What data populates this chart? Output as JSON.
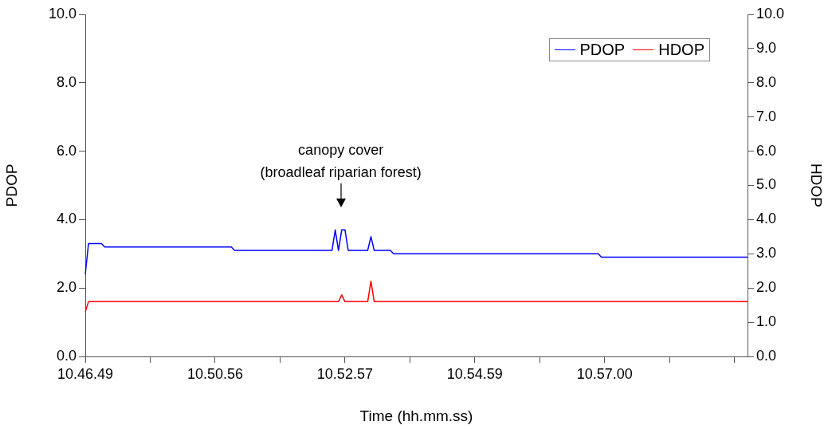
{
  "chart_data": {
    "type": "line",
    "xlabel": "Time (hh.mm.ss)",
    "ylabel": "PDOP",
    "y2label": "HDOP",
    "categories": [
      "10.46.49",
      null,
      null,
      null,
      null,
      null,
      null,
      null,
      null,
      null,
      null,
      null,
      null,
      null,
      null,
      null,
      null,
      null,
      null,
      null,
      null,
      null,
      null,
      null,
      null,
      null,
      null,
      null,
      null,
      null,
      null,
      null,
      null,
      null,
      null,
      null,
      null,
      null,
      null,
      null,
      "10.50.56",
      null,
      null,
      null,
      null,
      null,
      null,
      null,
      null,
      null,
      null,
      null,
      null,
      null,
      null,
      null,
      null,
      null,
      null,
      null,
      null,
      null,
      null,
      null,
      null,
      null,
      null,
      null,
      null,
      null,
      null,
      null,
      null,
      null,
      null,
      null,
      null,
      null,
      null,
      null,
      "10.52.57",
      null,
      null,
      null,
      null,
      null,
      null,
      null,
      null,
      null,
      null,
      null,
      null,
      null,
      null,
      null,
      null,
      null,
      null,
      null,
      null,
      null,
      null,
      null,
      null,
      null,
      null,
      null,
      null,
      null,
      null,
      null,
      null,
      null,
      null,
      null,
      null,
      null,
      null,
      null,
      "10.54.59",
      null,
      null,
      null,
      null,
      null,
      null,
      null,
      null,
      null,
      null,
      null,
      null,
      null,
      null,
      null,
      null,
      null,
      null,
      null,
      null,
      null,
      null,
      null,
      null,
      null,
      null,
      null,
      null,
      null,
      null,
      null,
      null,
      null,
      null,
      null,
      null,
      null,
      null,
      null,
      "10.57.00",
      null,
      null,
      null,
      null,
      null,
      null,
      null,
      null,
      null,
      null,
      null,
      null,
      null,
      null,
      null,
      null,
      null,
      null,
      null,
      null,
      null,
      null,
      null,
      null,
      null,
      null,
      null,
      null,
      null,
      null,
      null,
      null,
      null,
      null,
      null,
      null,
      null,
      null,
      null,
      null,
      null,
      null,
      null,
      null
    ],
    "series": [
      {
        "name": "PDOP",
        "color": "#0000ff",
        "values": [
          2.4,
          3.3,
          3.3,
          3.3,
          3.3,
          3.3,
          3.2,
          3.2,
          3.2,
          3.2,
          3.2,
          3.2,
          3.2,
          3.2,
          3.2,
          3.2,
          3.2,
          3.2,
          3.2,
          3.2,
          3.2,
          3.2,
          3.2,
          3.2,
          3.2,
          3.2,
          3.2,
          3.2,
          3.2,
          3.2,
          3.2,
          3.2,
          3.2,
          3.2,
          3.2,
          3.2,
          3.2,
          3.2,
          3.2,
          3.2,
          3.2,
          3.2,
          3.2,
          3.2,
          3.2,
          3.2,
          3.1,
          3.1,
          3.1,
          3.1,
          3.1,
          3.1,
          3.1,
          3.1,
          3.1,
          3.1,
          3.1,
          3.1,
          3.1,
          3.1,
          3.1,
          3.1,
          3.1,
          3.1,
          3.1,
          3.1,
          3.1,
          3.1,
          3.1,
          3.1,
          3.1,
          3.1,
          3.1,
          3.1,
          3.1,
          3.1,
          3.1,
          3.7,
          3.1,
          3.7,
          3.7,
          3.1,
          3.1,
          3.1,
          3.1,
          3.1,
          3.1,
          3.1,
          3.5,
          3.1,
          3.1,
          3.1,
          3.1,
          3.1,
          3.1,
          3.0,
          3.0,
          3.0,
          3.0,
          3.0,
          3.0,
          3.0,
          3.0,
          3.0,
          3.0,
          3.0,
          3.0,
          3.0,
          3.0,
          3.0,
          3.0,
          3.0,
          3.0,
          3.0,
          3.0,
          3.0,
          3.0,
          3.0,
          3.0,
          3.0,
          3.0,
          3.0,
          3.0,
          3.0,
          3.0,
          3.0,
          3.0,
          3.0,
          3.0,
          3.0,
          3.0,
          3.0,
          3.0,
          3.0,
          3.0,
          3.0,
          3.0,
          3.0,
          3.0,
          3.0,
          3.0,
          3.0,
          3.0,
          3.0,
          3.0,
          3.0,
          3.0,
          3.0,
          3.0,
          3.0,
          3.0,
          3.0,
          3.0,
          3.0,
          3.0,
          3.0,
          3.0,
          3.0,
          3.0,
          2.9,
          2.9,
          2.9,
          2.9,
          2.9,
          2.9,
          2.9,
          2.9,
          2.9,
          2.9,
          2.9,
          2.9,
          2.9,
          2.9,
          2.9,
          2.9,
          2.9,
          2.9,
          2.9,
          2.9,
          2.9,
          2.9,
          2.9,
          2.9,
          2.9,
          2.9,
          2.9,
          2.9,
          2.9,
          2.9,
          2.9,
          2.9,
          2.9,
          2.9,
          2.9,
          2.9,
          2.9,
          2.9,
          2.9,
          2.9,
          2.9,
          2.9,
          2.9,
          2.9,
          2.9,
          2.9
        ]
      },
      {
        "name": "HDOP",
        "color": "#ff0000",
        "axis": "y2",
        "values": [
          1.3,
          1.6,
          1.6,
          1.6,
          1.6,
          1.6,
          1.6,
          1.6,
          1.6,
          1.6,
          1.6,
          1.6,
          1.6,
          1.6,
          1.6,
          1.6,
          1.6,
          1.6,
          1.6,
          1.6,
          1.6,
          1.6,
          1.6,
          1.6,
          1.6,
          1.6,
          1.6,
          1.6,
          1.6,
          1.6,
          1.6,
          1.6,
          1.6,
          1.6,
          1.6,
          1.6,
          1.6,
          1.6,
          1.6,
          1.6,
          1.6,
          1.6,
          1.6,
          1.6,
          1.6,
          1.6,
          1.6,
          1.6,
          1.6,
          1.6,
          1.6,
          1.6,
          1.6,
          1.6,
          1.6,
          1.6,
          1.6,
          1.6,
          1.6,
          1.6,
          1.6,
          1.6,
          1.6,
          1.6,
          1.6,
          1.6,
          1.6,
          1.6,
          1.6,
          1.6,
          1.6,
          1.6,
          1.6,
          1.6,
          1.6,
          1.6,
          1.6,
          1.6,
          1.6,
          1.8,
          1.6,
          1.6,
          1.6,
          1.6,
          1.6,
          1.6,
          1.6,
          1.6,
          2.2,
          1.6,
          1.6,
          1.6,
          1.6,
          1.6,
          1.6,
          1.6,
          1.6,
          1.6,
          1.6,
          1.6,
          1.6,
          1.6,
          1.6,
          1.6,
          1.6,
          1.6,
          1.6,
          1.6,
          1.6,
          1.6,
          1.6,
          1.6,
          1.6,
          1.6,
          1.6,
          1.6,
          1.6,
          1.6,
          1.6,
          1.6,
          1.6,
          1.6,
          1.6,
          1.6,
          1.6,
          1.6,
          1.6,
          1.6,
          1.6,
          1.6,
          1.6,
          1.6,
          1.6,
          1.6,
          1.6,
          1.6,
          1.6,
          1.6,
          1.6,
          1.6,
          1.6,
          1.6,
          1.6,
          1.6,
          1.6,
          1.6,
          1.6,
          1.6,
          1.6,
          1.6,
          1.6,
          1.6,
          1.6,
          1.6,
          1.6,
          1.6,
          1.6,
          1.6,
          1.6,
          1.6,
          1.6,
          1.6,
          1.6,
          1.6,
          1.6,
          1.6,
          1.6,
          1.6,
          1.6,
          1.6,
          1.6,
          1.6,
          1.6,
          1.6,
          1.6,
          1.6,
          1.6,
          1.6,
          1.6,
          1.6,
          1.6,
          1.6,
          1.6,
          1.6,
          1.6,
          1.6,
          1.6,
          1.6,
          1.6,
          1.6,
          1.6,
          1.6,
          1.6,
          1.6,
          1.6,
          1.6,
          1.6,
          1.6,
          1.6,
          1.6,
          1.6,
          1.6,
          1.6,
          1.6,
          1.6
        ]
      }
    ],
    "ylim": [
      0,
      10
    ],
    "yticks": [
      {
        "value": 0,
        "label": "0.0"
      },
      {
        "value": 2,
        "label": "2.0"
      },
      {
        "value": 4,
        "label": "4.0"
      },
      {
        "value": 6,
        "label": "6.0"
      },
      {
        "value": 8,
        "label": "8.0"
      },
      {
        "value": 10,
        "label": "10.0"
      }
    ],
    "y2lim": [
      0,
      10
    ],
    "y2ticks": [
      {
        "value": 0,
        "label": "0.0"
      },
      {
        "value": 1,
        "label": "1.0"
      },
      {
        "value": 2,
        "label": "2.0"
      },
      {
        "value": 3,
        "label": "3.0"
      },
      {
        "value": 4,
        "label": "4.0"
      },
      {
        "value": 5,
        "label": "5.0"
      },
      {
        "value": 6,
        "label": "6.0"
      },
      {
        "value": 7,
        "label": "7.0"
      },
      {
        "value": 8,
        "label": "8.0"
      },
      {
        "value": 9,
        "label": "9.0"
      },
      {
        "value": 10,
        "label": "10.0"
      }
    ],
    "annotations": [
      "canopy cover\n(broadleaf riparian forest)"
    ],
    "grid": false,
    "legend": "top right",
    "marker": "none",
    "line_style": "solid"
  }
}
